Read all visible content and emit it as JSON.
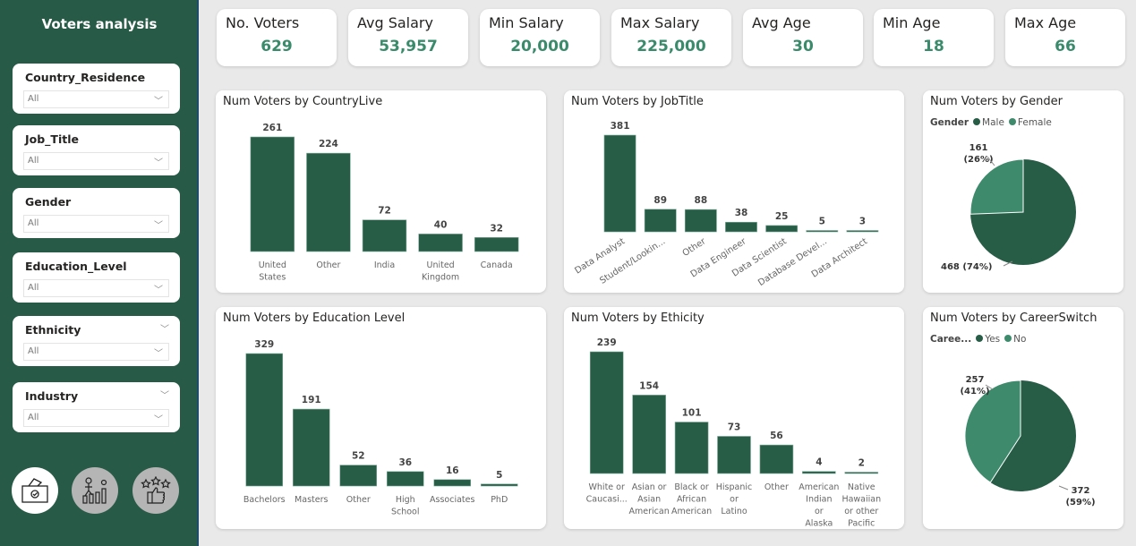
{
  "sidebar": {
    "title": "Voters analysis",
    "slicers": [
      {
        "label": "Country_Residence",
        "value": "All"
      },
      {
        "label": "Job_Title",
        "value": "All"
      },
      {
        "label": "Gender",
        "value": "All"
      },
      {
        "label": "Education_Level",
        "value": "All"
      },
      {
        "label": "Ethnicity",
        "value": "All"
      },
      {
        "label": "Industry",
        "value": "All"
      }
    ],
    "nav": [
      "ballot-box-icon",
      "career-growth-icon",
      "rating-thumbs-up-icon"
    ]
  },
  "kpis": [
    {
      "label": "No. Voters",
      "value": "629"
    },
    {
      "label": "Avg Salary",
      "value": "53,957"
    },
    {
      "label": "Min Salary",
      "value": "20,000"
    },
    {
      "label": "Max Salary",
      "value": "225,000"
    },
    {
      "label": "Avg Age",
      "value": "30"
    },
    {
      "label": "Min Age",
      "value": "18"
    },
    {
      "label": "Max Age",
      "value": "66"
    }
  ],
  "colors": {
    "primary": "#275c47",
    "secondary": "#3e8a6d",
    "kpi_value": "#3a8a6c",
    "sidebar": "#285a48"
  },
  "chart_data": [
    {
      "type": "bar",
      "title": "Num Voters by CountryLive",
      "categories": [
        "United States",
        "Other",
        "India",
        "United Kingdom",
        "Canada"
      ],
      "values": [
        261,
        224,
        72,
        40,
        32
      ]
    },
    {
      "type": "bar",
      "title": "Num Voters by JobTitle",
      "categories": [
        "Data Analyst",
        "Student/Lookin...",
        "Other",
        "Data Engineer",
        "Data Scientist",
        "Database Devel...",
        "Data Architect"
      ],
      "values": [
        381,
        89,
        88,
        38,
        25,
        5,
        3
      ],
      "label_rotation": "diagonal"
    },
    {
      "type": "pie",
      "title": "Num Voters by Gender",
      "legend_title": "Gender",
      "slices": [
        {
          "name": "Male",
          "value": 468,
          "label": "468 (74%)"
        },
        {
          "name": "Female",
          "value": 161,
          "label": "161 (26%)"
        }
      ]
    },
    {
      "type": "bar",
      "title": "Num Voters by Education Level",
      "categories": [
        "Bachelors",
        "Masters",
        "Other",
        "High School",
        "Associates",
        "PhD"
      ],
      "values": [
        329,
        191,
        52,
        36,
        16,
        5
      ]
    },
    {
      "type": "bar",
      "title": "Num Voters by Ethicity",
      "categories": [
        "White or Caucasi...",
        "Asian or Asian American",
        "Black or African American",
        "Hispanic or Latino",
        "Other",
        "American Indian or Alaska Native",
        "Native Hawaiian or other Pacific I..."
      ],
      "values": [
        239,
        154,
        101,
        73,
        56,
        4,
        2
      ]
    },
    {
      "type": "pie",
      "title": "Num Voters by CareerSwitch",
      "legend_title": "Caree...",
      "slices": [
        {
          "name": "Yes",
          "value": 372,
          "label": "372 (59%)"
        },
        {
          "name": "No",
          "value": 257,
          "label": "257 (41%)"
        }
      ]
    }
  ]
}
